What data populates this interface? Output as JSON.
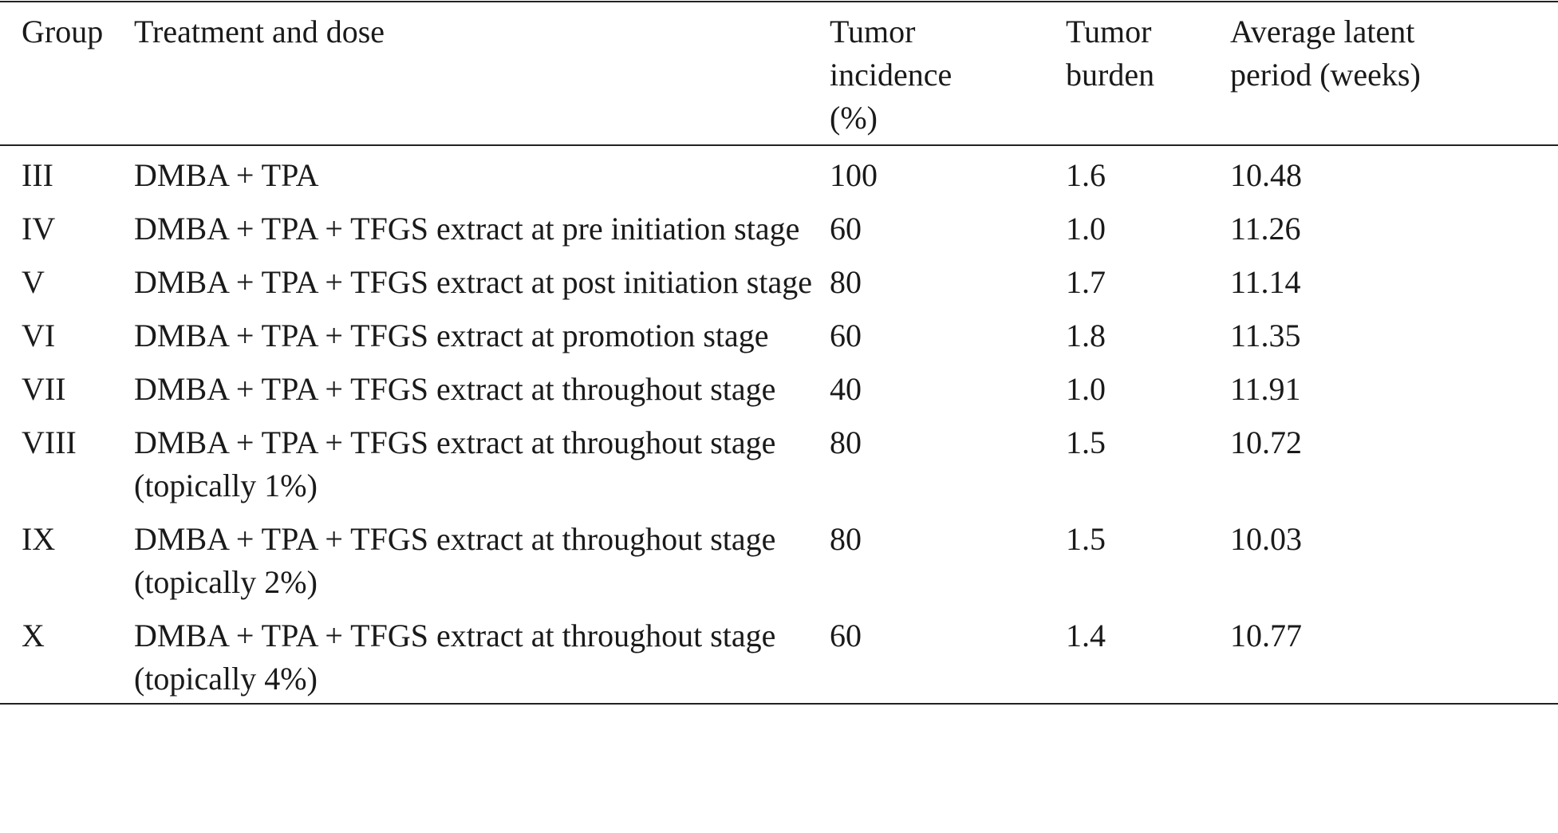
{
  "table": {
    "columns": [
      "Group",
      "Treatment and dose",
      "Tumor incidence (%)",
      "Tumor burden",
      "Average latent period (weeks)"
    ],
    "rows": [
      [
        "III",
        "DMBA + TPA",
        "100",
        "1.6",
        "10.48"
      ],
      [
        "IV",
        "DMBA + TPA + TFGS extract at pre initiation stage",
        "60",
        "1.0",
        "11.26"
      ],
      [
        "V",
        "DMBA + TPA + TFGS extract at post initiation stage",
        "80",
        "1.7",
        "11.14"
      ],
      [
        "VI",
        "DMBA + TPA + TFGS extract at promotion stage",
        "60",
        "1.8",
        "11.35"
      ],
      [
        "VII",
        "DMBA + TPA + TFGS extract at throughout stage",
        "40",
        "1.0",
        "11.91"
      ],
      [
        "VIII",
        "DMBA + TPA + TFGS extract at throughout stage (topically 1%)",
        "80",
        "1.5",
        "10.72"
      ],
      [
        "IX",
        "DMBA + TPA + TFGS extract at throughout stage (topically 2%)",
        "80",
        "1.5",
        "10.03"
      ],
      [
        "X",
        "DMBA + TPA + TFGS extract at throughout stage (topically 4%)",
        "60",
        "1.4",
        "10.77"
      ]
    ]
  }
}
